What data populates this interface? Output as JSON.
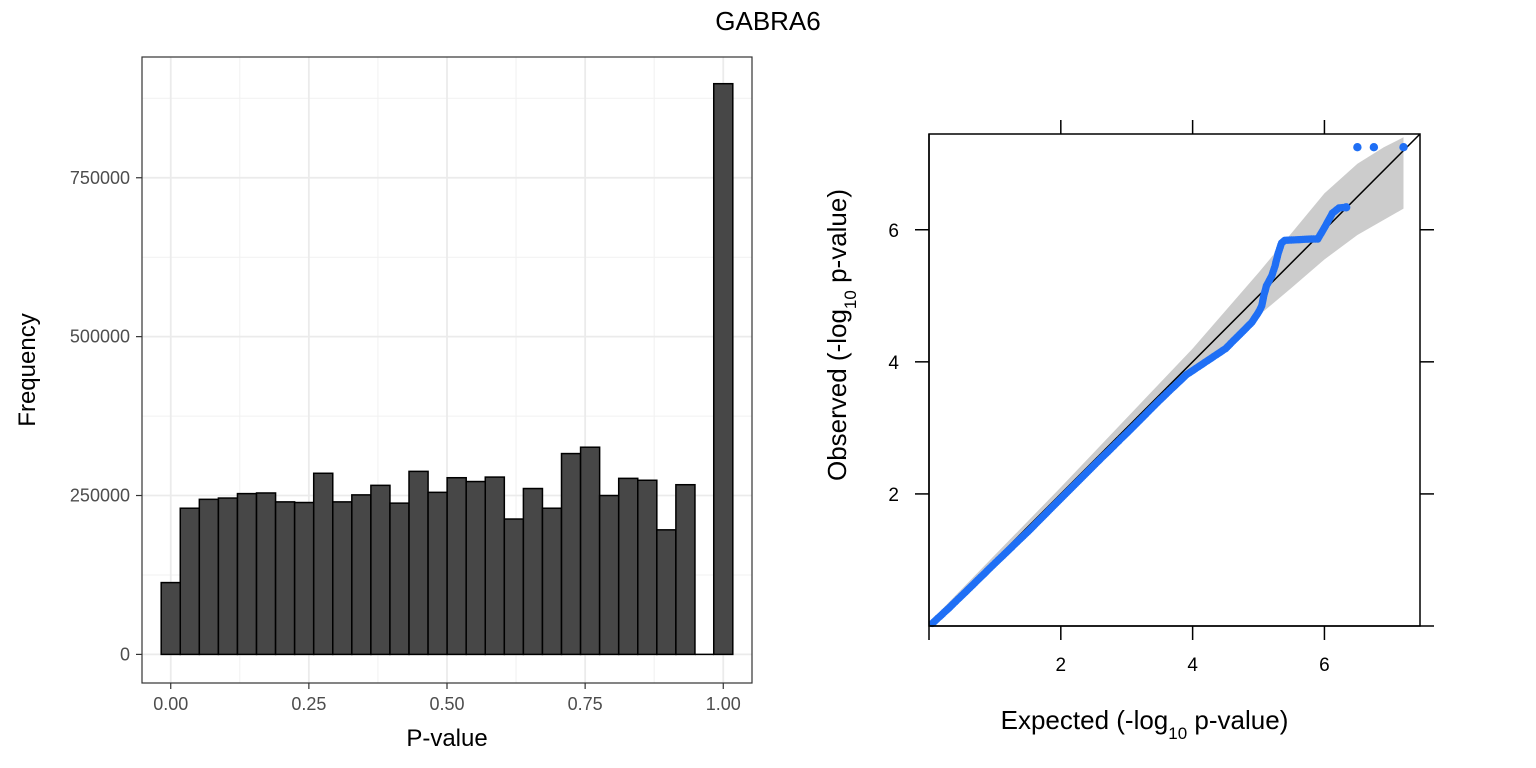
{
  "page": {
    "title": "GABRA6"
  },
  "chart_data": [
    {
      "type": "bar",
      "subtype": "histogram",
      "xlabel": "P-value",
      "ylabel": "Frequency",
      "xlim": [
        -0.052,
        1.052
      ],
      "ylim": [
        -45000,
        940000
      ],
      "xticks": [
        "0.00",
        "0.25",
        "0.50",
        "0.75",
        "1.00"
      ],
      "xtick_values": [
        0,
        0.25,
        0.5,
        0.75,
        1.0
      ],
      "yticks": [
        "0",
        "250000",
        "500000",
        "750000"
      ],
      "ytick_values": [
        0,
        250000,
        500000,
        750000
      ],
      "grid": true,
      "bin_width": 0.0345,
      "bin_centers": [
        0.0,
        0.0345,
        0.069,
        0.1035,
        0.138,
        0.1725,
        0.207,
        0.2415,
        0.276,
        0.3105,
        0.345,
        0.3795,
        0.414,
        0.4485,
        0.483,
        0.5175,
        0.552,
        0.5865,
        0.621,
        0.6555,
        0.69,
        0.7245,
        0.759,
        0.7935,
        0.828,
        0.8625,
        0.897,
        0.9315,
        0.966,
        1.0
      ],
      "values": [
        113000,
        230000,
        244000,
        246000,
        253000,
        254000,
        240000,
        239000,
        285000,
        240000,
        251000,
        266000,
        238000,
        288000,
        255000,
        278000,
        272000,
        279000,
        213000,
        261000,
        230000,
        316000,
        326000,
        250000,
        277000,
        274000,
        196000,
        267000,
        0,
        898000
      ],
      "fill": "#474747"
    },
    {
      "type": "scatter",
      "subtype": "qq-plot",
      "xlabel": {
        "pre": "Expected (-log",
        "sub": "10",
        "post": " p-value)"
      },
      "ylabel": {
        "pre": "Observed (-log",
        "sub": "10",
        "post": " p-value)"
      },
      "xlim": [
        0,
        7.45
      ],
      "ylim": [
        0,
        7.45
      ],
      "xticks": [
        "2",
        "4",
        "6"
      ],
      "xtick_values": [
        2,
        4,
        6
      ],
      "yticks": [
        "2",
        "4",
        "6"
      ],
      "ytick_values": [
        2,
        4,
        6
      ],
      "point_color": "#1f6ff5",
      "band_color": "#cccccc",
      "points": [
        [
          0.05,
          0.04
        ],
        [
          0.3,
          0.27
        ],
        [
          0.6,
          0.56
        ],
        [
          1.0,
          0.95
        ],
        [
          1.5,
          1.43
        ],
        [
          2.0,
          1.93
        ],
        [
          2.5,
          2.43
        ],
        [
          3.0,
          2.92
        ],
        [
          3.5,
          3.42
        ],
        [
          3.9,
          3.8
        ],
        [
          4.2,
          4.0
        ],
        [
          4.5,
          4.2
        ],
        [
          4.7,
          4.4
        ],
        [
          4.9,
          4.6
        ],
        [
          5.0,
          4.75
        ],
        [
          5.05,
          4.85
        ],
        [
          5.08,
          5.0
        ],
        [
          5.12,
          5.15
        ],
        [
          5.2,
          5.3
        ],
        [
          5.25,
          5.45
        ],
        [
          5.3,
          5.65
        ],
        [
          5.35,
          5.8
        ],
        [
          5.4,
          5.84
        ],
        [
          5.6,
          5.85
        ],
        [
          5.8,
          5.86
        ],
        [
          5.9,
          5.86
        ],
        [
          6.0,
          6.03
        ],
        [
          6.12,
          6.25
        ],
        [
          6.22,
          6.33
        ],
        [
          6.33,
          6.34
        ],
        [
          6.5,
          7.25
        ],
        [
          6.75,
          7.25
        ],
        [
          7.2,
          7.25
        ]
      ],
      "band_upper": [
        [
          0,
          0.05
        ],
        [
          2,
          2.1
        ],
        [
          4,
          4.2
        ],
        [
          5,
          5.35
        ],
        [
          5.5,
          5.95
        ],
        [
          6,
          6.55
        ],
        [
          6.5,
          7.0
        ],
        [
          6.9,
          7.25
        ],
        [
          7.2,
          7.4
        ]
      ],
      "band_lower": [
        [
          7.2,
          6.32
        ],
        [
          6.9,
          6.15
        ],
        [
          6.5,
          5.92
        ],
        [
          6,
          5.55
        ],
        [
          5.5,
          5.12
        ],
        [
          5,
          4.7
        ],
        [
          4,
          3.82
        ],
        [
          2,
          1.92
        ],
        [
          0,
          0
        ]
      ]
    }
  ]
}
